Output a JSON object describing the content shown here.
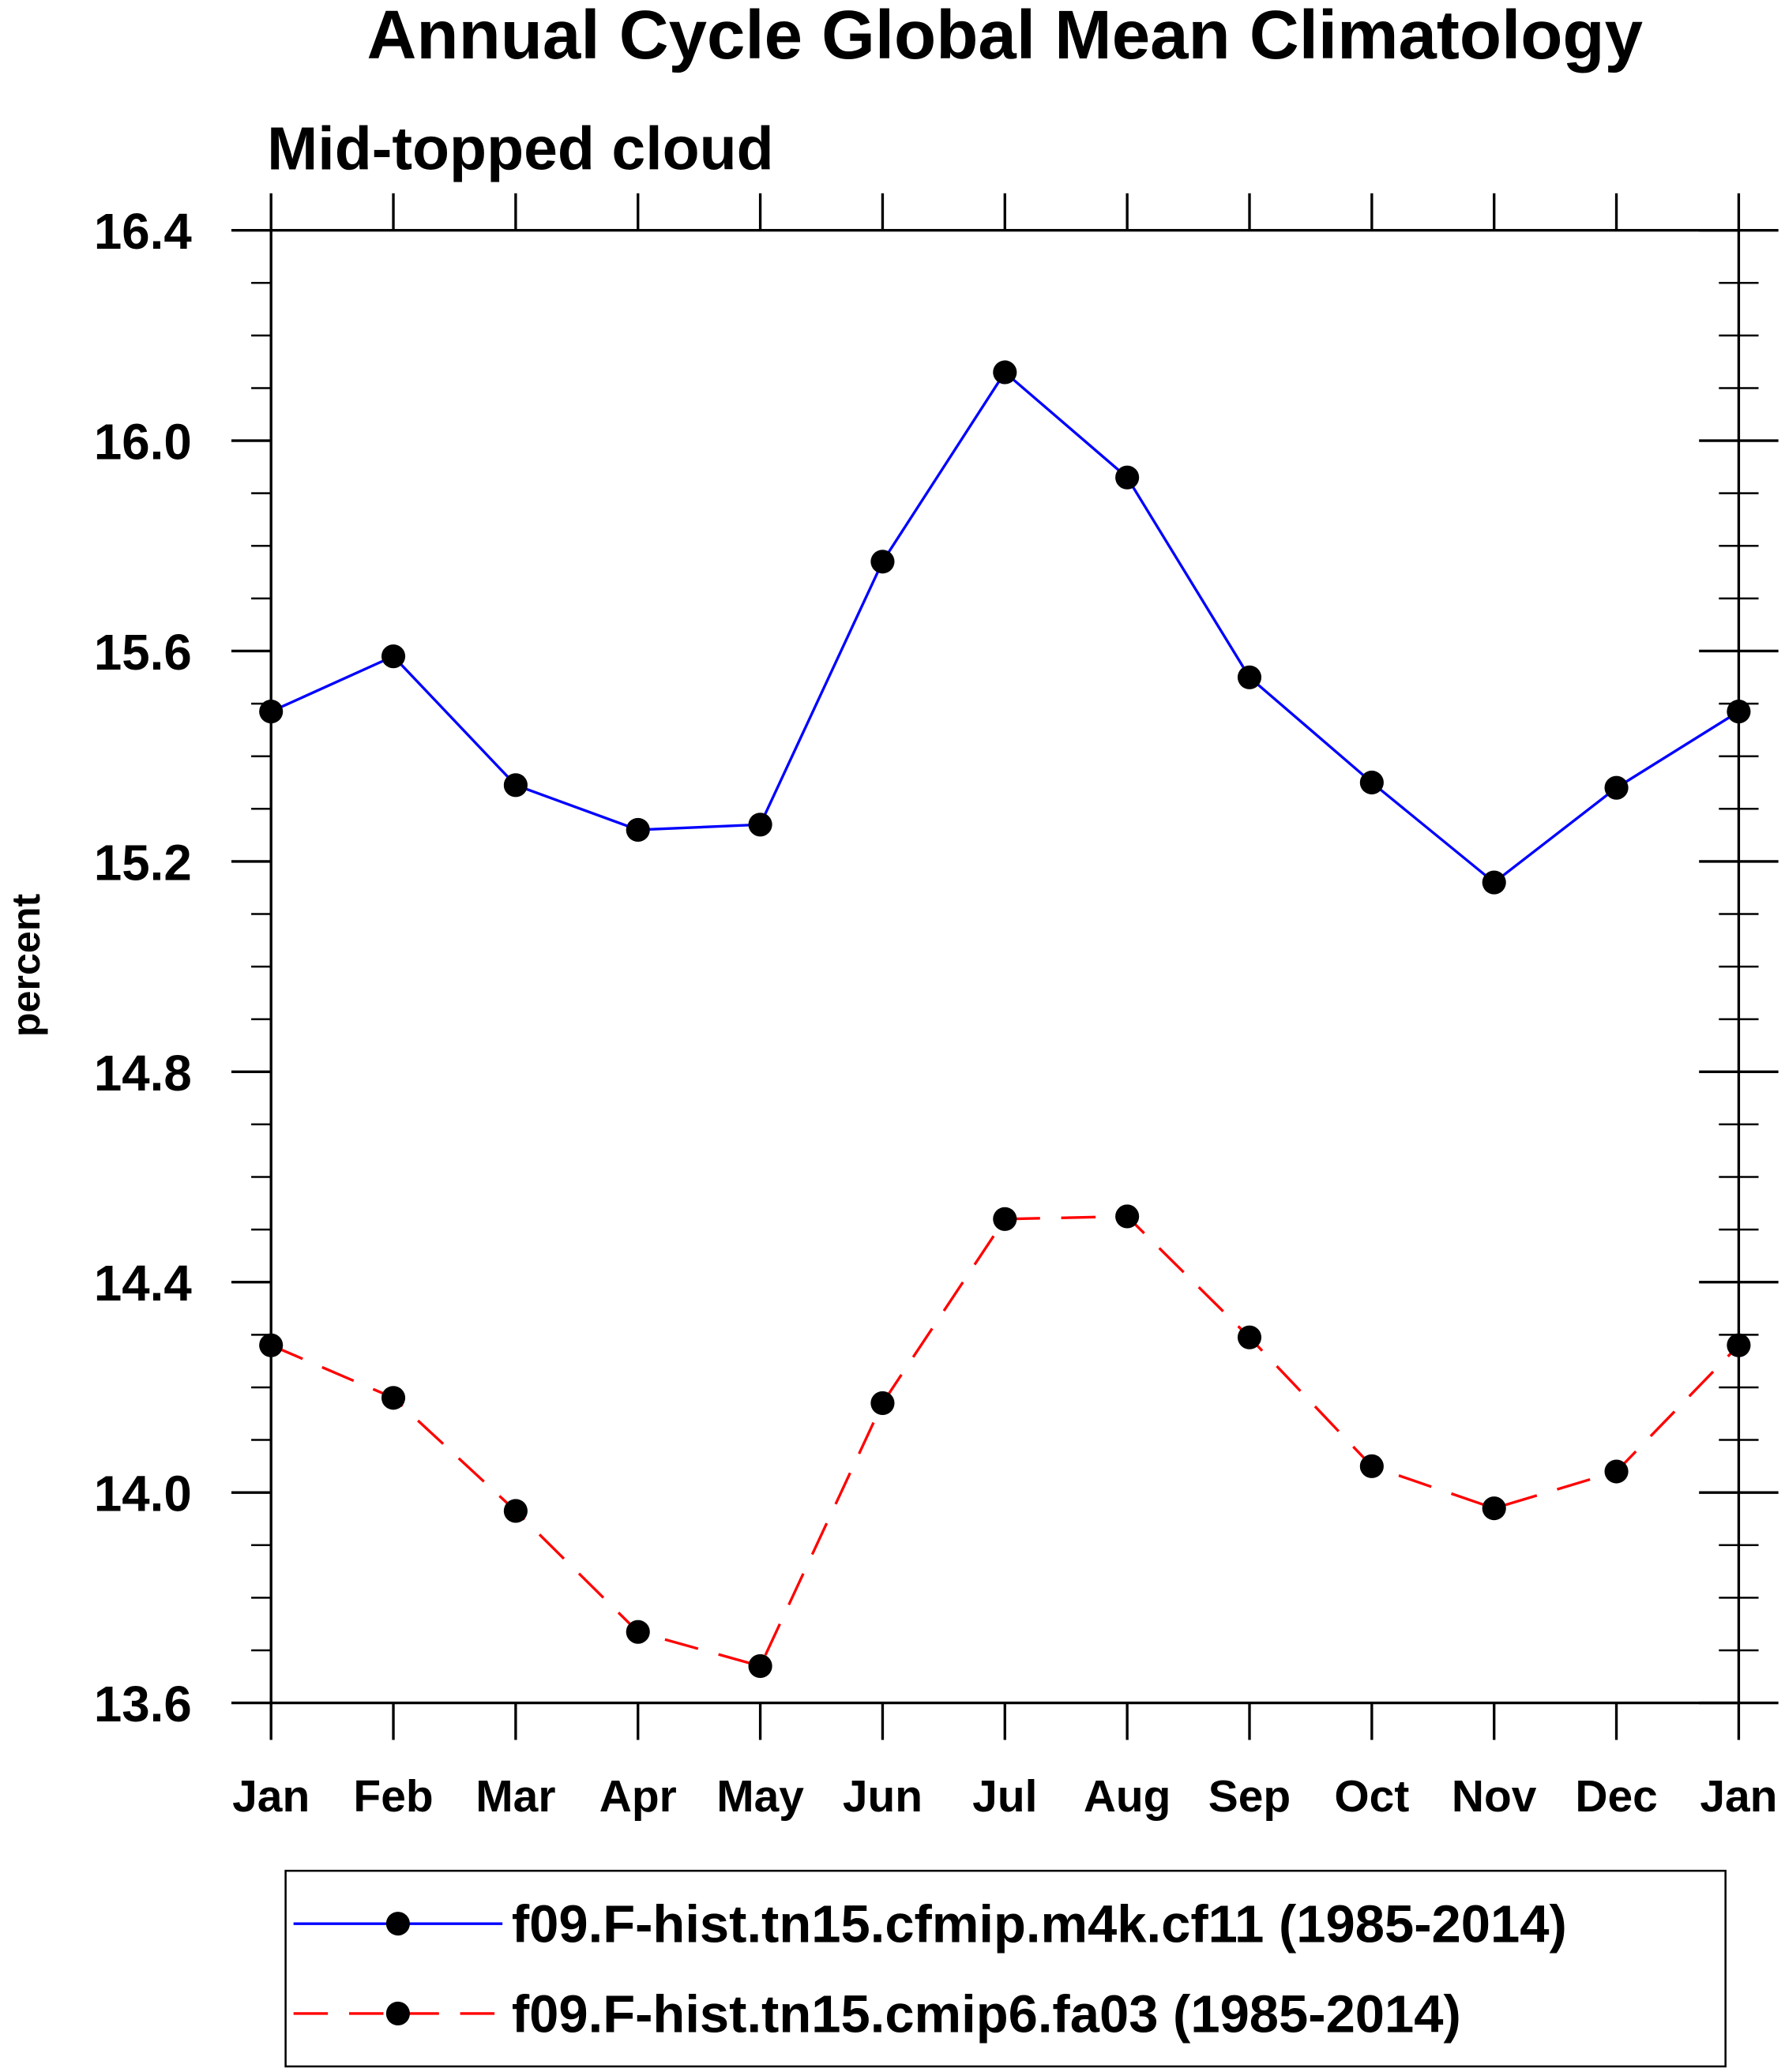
{
  "chart_data": {
    "type": "line",
    "title": "Annual Cycle Global Mean Climatology",
    "subtitle": "Mid-topped cloud",
    "xlabel": "",
    "ylabel": "percent",
    "ylim": [
      13.6,
      16.4
    ],
    "yticks": [
      "13.6",
      "14.0",
      "14.4",
      "14.8",
      "15.2",
      "15.6",
      "16.0",
      "16.4"
    ],
    "categories": [
      "Jan",
      "Feb",
      "Mar",
      "Apr",
      "May",
      "Jun",
      "Jul",
      "Aug",
      "Sep",
      "Oct",
      "Nov",
      "Dec",
      "Jan"
    ],
    "grid": false,
    "legend_position": "bottom",
    "series": [
      {
        "name": "f09.F-hist.tn15.cfmip.m4k.cf11 (1985-2014)",
        "color": "#0000ff",
        "dash": "solid",
        "values": [
          15.485,
          15.59,
          15.345,
          15.26,
          15.27,
          15.77,
          16.13,
          15.93,
          15.55,
          15.35,
          15.16,
          15.34,
          15.485
        ]
      },
      {
        "name": "f09.F-hist.tn15.cmip6.fa03 (1985-2014)",
        "color": "#ff0000",
        "dash": "dashed",
        "values": [
          14.28,
          14.18,
          13.965,
          13.735,
          13.67,
          14.17,
          14.52,
          14.525,
          14.295,
          14.05,
          13.97,
          14.04,
          14.28
        ]
      }
    ]
  }
}
